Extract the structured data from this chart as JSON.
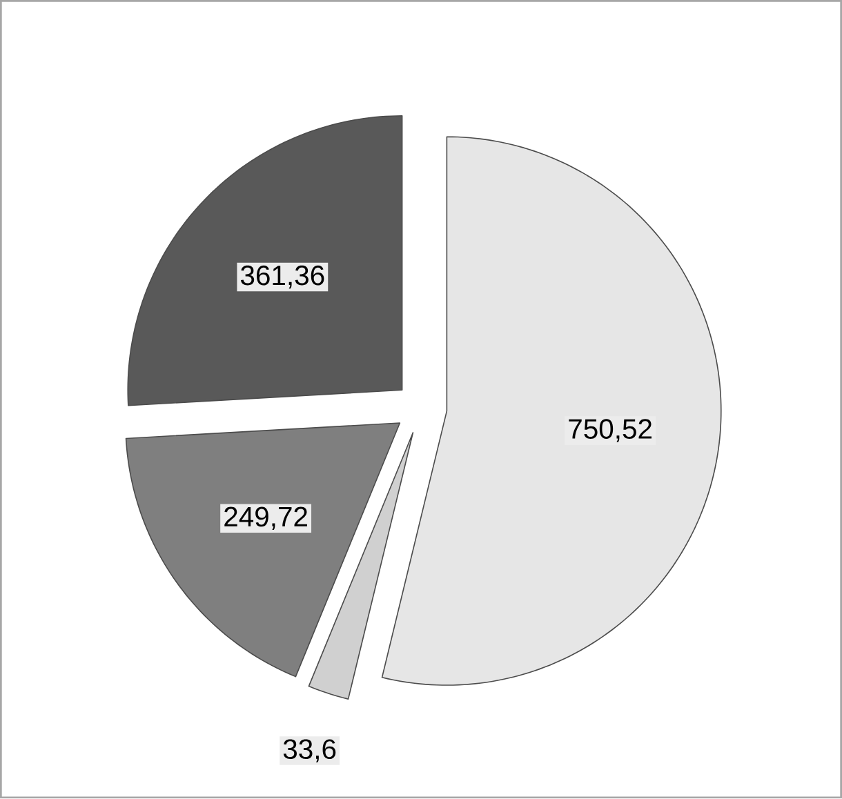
{
  "chart_data": {
    "type": "pie",
    "categories": [
      null,
      null,
      null,
      null
    ],
    "values": [
      750.52,
      33.6,
      249.72,
      361.36
    ],
    "colors": [
      "#e6e6e6",
      "#d0d0d0",
      "#7f7f7f",
      "#595959"
    ],
    "value_labels": [
      "750,52",
      "33,6",
      "249,72",
      "361,36"
    ]
  }
}
